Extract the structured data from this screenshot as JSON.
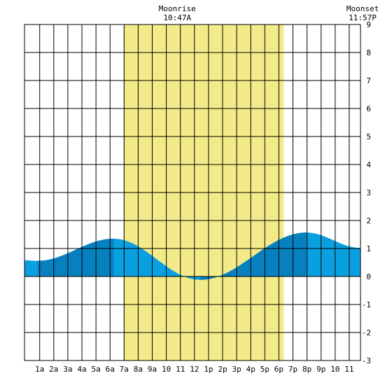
{
  "chart_data": {
    "type": "area",
    "xlim": [
      -0.08,
      23.8
    ],
    "ylim": [
      -3,
      9
    ],
    "x_ticks": [
      {
        "x": 1,
        "label": "1a"
      },
      {
        "x": 2,
        "label": "2a"
      },
      {
        "x": 3,
        "label": "3a"
      },
      {
        "x": 4,
        "label": "4a"
      },
      {
        "x": 5,
        "label": "5a"
      },
      {
        "x": 6,
        "label": "6a"
      },
      {
        "x": 7,
        "label": "7a"
      },
      {
        "x": 8,
        "label": "8a"
      },
      {
        "x": 9,
        "label": "9a"
      },
      {
        "x": 10,
        "label": "10"
      },
      {
        "x": 11,
        "label": "11"
      },
      {
        "x": 12,
        "label": "12"
      },
      {
        "x": 13,
        "label": "1p"
      },
      {
        "x": 14,
        "label": "2p"
      },
      {
        "x": 15,
        "label": "3p"
      },
      {
        "x": 16,
        "label": "4p"
      },
      {
        "x": 17,
        "label": "5p"
      },
      {
        "x": 18,
        "label": "6p"
      },
      {
        "x": 19,
        "label": "7p"
      },
      {
        "x": 20,
        "label": "8p"
      },
      {
        "x": 21,
        "label": "9p"
      },
      {
        "x": 22,
        "label": "10"
      },
      {
        "x": 23,
        "label": "11"
      }
    ],
    "y_ticks": [
      {
        "y": 9,
        "label": "9"
      },
      {
        "y": 8,
        "label": "8"
      },
      {
        "y": 7,
        "label": "7"
      },
      {
        "y": 6,
        "label": "6"
      },
      {
        "y": 5,
        "label": "5"
      },
      {
        "y": 4,
        "label": "4"
      },
      {
        "y": 3,
        "label": "3"
      },
      {
        "y": 2,
        "label": "2"
      },
      {
        "y": 1,
        "label": "1"
      },
      {
        "y": 0,
        "label": "0"
      },
      {
        "y": -1,
        "label": "-1"
      },
      {
        "y": -2,
        "label": "-2"
      },
      {
        "y": -3,
        "label": "-3"
      }
    ],
    "daylight": {
      "start": 6.95,
      "end": 18.35,
      "color": "#f3eb8a"
    },
    "tide": {
      "extrema": [
        {
          "x": -0.08,
          "y": 0.58
        },
        {
          "x": 0.85,
          "y": 0.56
        },
        {
          "x": 6.25,
          "y": 1.35
        },
        {
          "x": 12.4,
          "y": -0.12
        },
        {
          "x": 19.95,
          "y": 1.57
        },
        {
          "x": 23.8,
          "y": 1.02
        }
      ],
      "color_light": "#0aa0e0",
      "color_dark": "#0780bf"
    },
    "dark_bands": [
      {
        "start": 0.85,
        "end": 6.25
      },
      {
        "start": 12.4,
        "end": 19.95
      }
    ],
    "annotations": [
      {
        "x": 10.78,
        "title": "Moonrise",
        "time": "10:47A"
      },
      {
        "x": 23.95,
        "title": "Moonset",
        "time": "11:57P"
      }
    ],
    "grid": true
  }
}
